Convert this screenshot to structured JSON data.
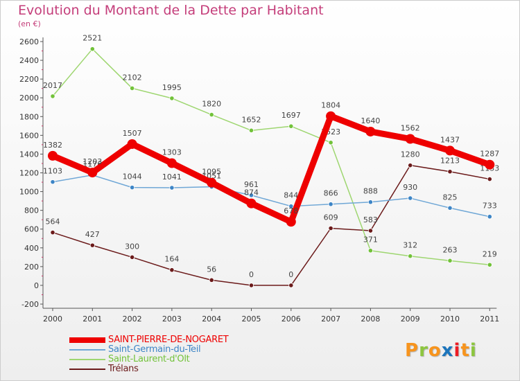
{
  "title": "Evolution du Montant de la Dette par Habitant",
  "unit": "(en €)",
  "logo": {
    "letters": [
      "P",
      "r",
      "o",
      "x",
      "i",
      "t",
      "i"
    ],
    "colors": [
      "#f7941d",
      "#8dc63f",
      "#f7941d",
      "#1c75bc",
      "#ed1c24",
      "#f7941d",
      "#8dc63f"
    ]
  },
  "chart_data": {
    "type": "line",
    "x": [
      "2000",
      "2001",
      "2002",
      "2003",
      "2004",
      "2005",
      "2006",
      "2007",
      "2008",
      "2009",
      "2010",
      "2011"
    ],
    "ylim": [
      -200,
      2600
    ],
    "yticks": [
      "2600",
      "2400",
      "2200",
      "2000",
      "1800",
      "1600",
      "1400",
      "1200",
      "1000",
      "800",
      "600",
      "400",
      "200",
      "0",
      "-200"
    ],
    "grid": false,
    "legend_position": "bottom-left",
    "series": [
      {
        "name": "Trélans",
        "color": "#6b1a1a",
        "point_color": "#6b1a1a",
        "values": [
          564,
          427,
          300,
          164,
          56,
          0,
          0,
          609,
          583,
          1280,
          1213,
          1133
        ],
        "labels": [
          "564",
          "427",
          "300",
          "164",
          "56",
          "0",
          "0",
          "609",
          "583",
          "1280",
          "1213",
          "1133"
        ]
      },
      {
        "name": "Saint-Laurent-d'Olt",
        "color": "#9ed670",
        "point_color": "#72c23a",
        "values": [
          2017,
          2521,
          2102,
          1995,
          1820,
          1652,
          1697,
          1523,
          371,
          312,
          263,
          219
        ],
        "labels": [
          "2017",
          "2521",
          "2102",
          "1995",
          "1820",
          "1652",
          "1697",
          "1523",
          "371",
          "312",
          "263",
          "219"
        ]
      },
      {
        "name": "Saint-Germain-du-Teil",
        "color": "#6fa7d6",
        "point_color": "#3d85c6",
        "values": [
          1103,
          1176,
          1044,
          1041,
          1051,
          961,
          844,
          866,
          888,
          930,
          825,
          733
        ],
        "labels": [
          "1103",
          "1176",
          "1044",
          "1041",
          "1051",
          "961",
          "844",
          "866",
          "888",
          "930",
          "825",
          "733"
        ]
      },
      {
        "name": "SAINT-PIERRE-DE-NOGARET",
        "color": "#ee0000",
        "point_color": "#ee0000",
        "values": [
          1382,
          1203,
          1507,
          1303,
          1095,
          874,
          678,
          1804,
          1640,
          1562,
          1437,
          1287
        ],
        "labels": [
          "1382",
          "1203",
          "1507",
          "1303",
          "1095",
          "874",
          "678",
          "1804",
          "1640",
          "1562",
          "1437",
          "1287"
        ]
      }
    ],
    "legend_order": [
      "SAINT-PIERRE-DE-NOGARET",
      "Saint-Germain-du-Teil",
      "Saint-Laurent-d'Olt",
      "Trélans"
    ]
  }
}
